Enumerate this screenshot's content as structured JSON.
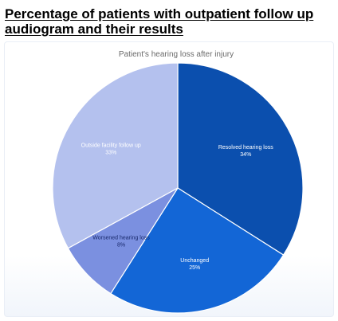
{
  "heading": "Percentage of patients with outpatient follow up audiogram and their results",
  "chart_data": {
    "type": "pie",
    "title": "Patient's hearing loss after injury",
    "start_angle_deg": 0,
    "direction": "clockwise",
    "slice_border": "#ffffff",
    "slices": [
      {
        "label": "Resolved hearing loss",
        "value": 34,
        "value_label": "34%",
        "color": "#0b4fae",
        "text_color": "#ffffff"
      },
      {
        "label": "Unchanged",
        "value": 25,
        "value_label": "25%",
        "color": "#1366d6",
        "text_color": "#ffffff"
      },
      {
        "label": "Worsened hearing loss",
        "value": 8,
        "value_label": "8%",
        "color": "#7b90e0",
        "text_color": "#1a2a6c"
      },
      {
        "label": "Outside facility follow up",
        "value": 33,
        "value_label": "33%",
        "color": "#b4c1ee",
        "text_color": "#ffffff"
      }
    ]
  }
}
